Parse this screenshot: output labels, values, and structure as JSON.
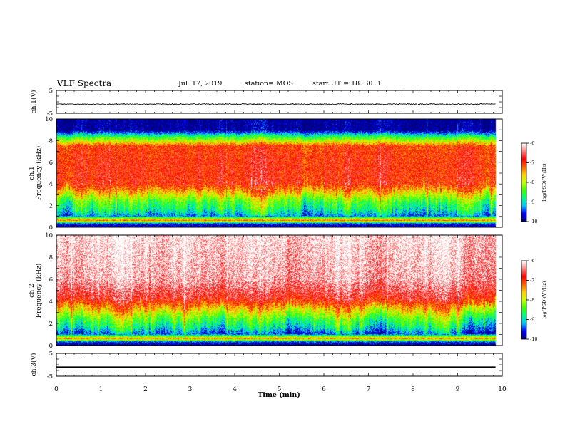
{
  "header": {
    "title": "VLF Spectra",
    "date": "Jul. 17, 2019",
    "station": "station= MOS",
    "start": "start  UT =   18: 30: 1"
  },
  "chart_data": [
    {
      "type": "line",
      "ylabel": "ch.1(V)",
      "ylim": [
        -5,
        5
      ],
      "yticks": [
        -5,
        5
      ],
      "x_range": [
        0,
        9.85
      ],
      "level": -1.0,
      "noise_amplitude": 0.25
    },
    {
      "type": "heatmap",
      "ylabel_line1": "ch.1",
      "ylabel_line2": "Frequency  (kHz)",
      "ylim": [
        0,
        10
      ],
      "yticks": [
        0,
        2,
        4,
        6,
        8,
        10
      ],
      "data_extent_x": [
        0,
        9.85
      ],
      "colorbar": {
        "label": "log(PSD)(V²/Hz)",
        "range": [
          -10,
          -6
        ],
        "ticks": [
          -6,
          -7,
          -8,
          -9,
          -10
        ]
      },
      "log_psd_profile": [
        {
          "f": 0.0,
          "v": -10.0
        },
        {
          "f": 0.3,
          "v": -9.6
        },
        {
          "f": 0.6,
          "v": -7.2
        },
        {
          "f": 1.0,
          "v": -9.3
        },
        {
          "f": 1.6,
          "v": -8.8
        },
        {
          "f": 2.4,
          "v": -8.4
        },
        {
          "f": 3.2,
          "v": -7.6
        },
        {
          "f": 4.0,
          "v": -6.9
        },
        {
          "f": 6.0,
          "v": -6.9
        },
        {
          "f": 7.5,
          "v": -7.0
        },
        {
          "f": 7.9,
          "v": -7.8
        },
        {
          "f": 8.3,
          "v": -8.5
        },
        {
          "f": 8.7,
          "v": -9.3
        },
        {
          "f": 9.0,
          "v": -10.0
        },
        {
          "f": 10.0,
          "v": -10.0
        }
      ]
    },
    {
      "type": "heatmap",
      "ylabel_line1": "ch.2",
      "ylabel_line2": "Frequency  (kHz)",
      "ylim": [
        0,
        10
      ],
      "yticks": [
        0,
        2,
        4,
        6,
        8,
        10
      ],
      "data_extent_x": [
        0,
        9.85
      ],
      "colorbar": {
        "label": "log(PSD)(V²/Hz)",
        "range": [
          -10,
          -6
        ],
        "ticks": [
          -6,
          -7,
          -8,
          -9,
          -10
        ]
      },
      "log_psd_profile": [
        {
          "f": 0.0,
          "v": -10.0
        },
        {
          "f": 0.3,
          "v": -9.5
        },
        {
          "f": 0.6,
          "v": -7.3
        },
        {
          "f": 1.0,
          "v": -9.4
        },
        {
          "f": 1.6,
          "v": -8.8
        },
        {
          "f": 2.4,
          "v": -8.3
        },
        {
          "f": 3.2,
          "v": -7.6
        },
        {
          "f": 4.2,
          "v": -6.7
        },
        {
          "f": 6.0,
          "v": -6.2
        },
        {
          "f": 10.0,
          "v": -6.0
        }
      ]
    },
    {
      "type": "line",
      "ylabel": "ch.3(V)",
      "ylim": [
        -5,
        5
      ],
      "yticks": [
        -5,
        5
      ],
      "x_range": [
        0,
        9.85
      ],
      "level": -1.0,
      "noise_amplitude": 0.0
    }
  ],
  "xaxis": {
    "label": "Time  (min)",
    "range": [
      0,
      10
    ],
    "ticks": [
      0,
      1,
      2,
      3,
      4,
      5,
      6,
      7,
      8,
      9,
      10
    ]
  },
  "colors": {
    "colormap": [
      "#000080",
      "#0000ff",
      "#00c8ff",
      "#00ff80",
      "#40ff00",
      "#c8ff00",
      "#ffd000",
      "#ff6000",
      "#ff0000",
      "#ff8080",
      "#ffffff"
    ],
    "trace": "#000000"
  }
}
